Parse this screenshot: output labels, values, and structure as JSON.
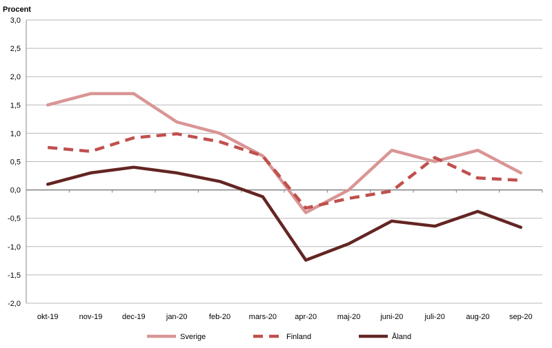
{
  "chart_data": {
    "type": "line",
    "ylabel": "Procent",
    "ylim": [
      -2.0,
      3.0
    ],
    "ytick_step": 0.5,
    "yticks": [
      "3,0",
      "2,5",
      "2,0",
      "1,5",
      "1,0",
      "0,5",
      "0,0",
      "-0,5",
      "-1,0",
      "-1,5",
      "-2,0"
    ],
    "grid": true,
    "legend_position": "bottom",
    "categories": [
      "okt-19",
      "nov-19",
      "dec-19",
      "jan-20",
      "feb-20",
      "mars-20",
      "apr-20",
      "maj-20",
      "juni-20",
      "juli-20",
      "aug-20",
      "sep-20"
    ],
    "series": [
      {
        "name": "Sverige",
        "style": "solid",
        "color": "#d99594",
        "values": [
          1.5,
          1.7,
          1.7,
          1.2,
          1.0,
          0.6,
          -0.4,
          0.0,
          0.7,
          0.5,
          0.7,
          0.3
        ]
      },
      {
        "name": "Finland",
        "style": "dashed",
        "color": "#c0504d",
        "values": [
          0.75,
          0.68,
          0.92,
          0.99,
          0.85,
          0.6,
          -0.32,
          -0.15,
          -0.02,
          0.57,
          0.21,
          0.17
        ]
      },
      {
        "name": "Åland",
        "style": "solid",
        "color": "#632523",
        "values": [
          0.1,
          0.3,
          0.4,
          0.3,
          0.15,
          -0.12,
          -1.24,
          -0.95,
          -0.55,
          -0.64,
          -0.38,
          -0.66
        ]
      }
    ]
  }
}
